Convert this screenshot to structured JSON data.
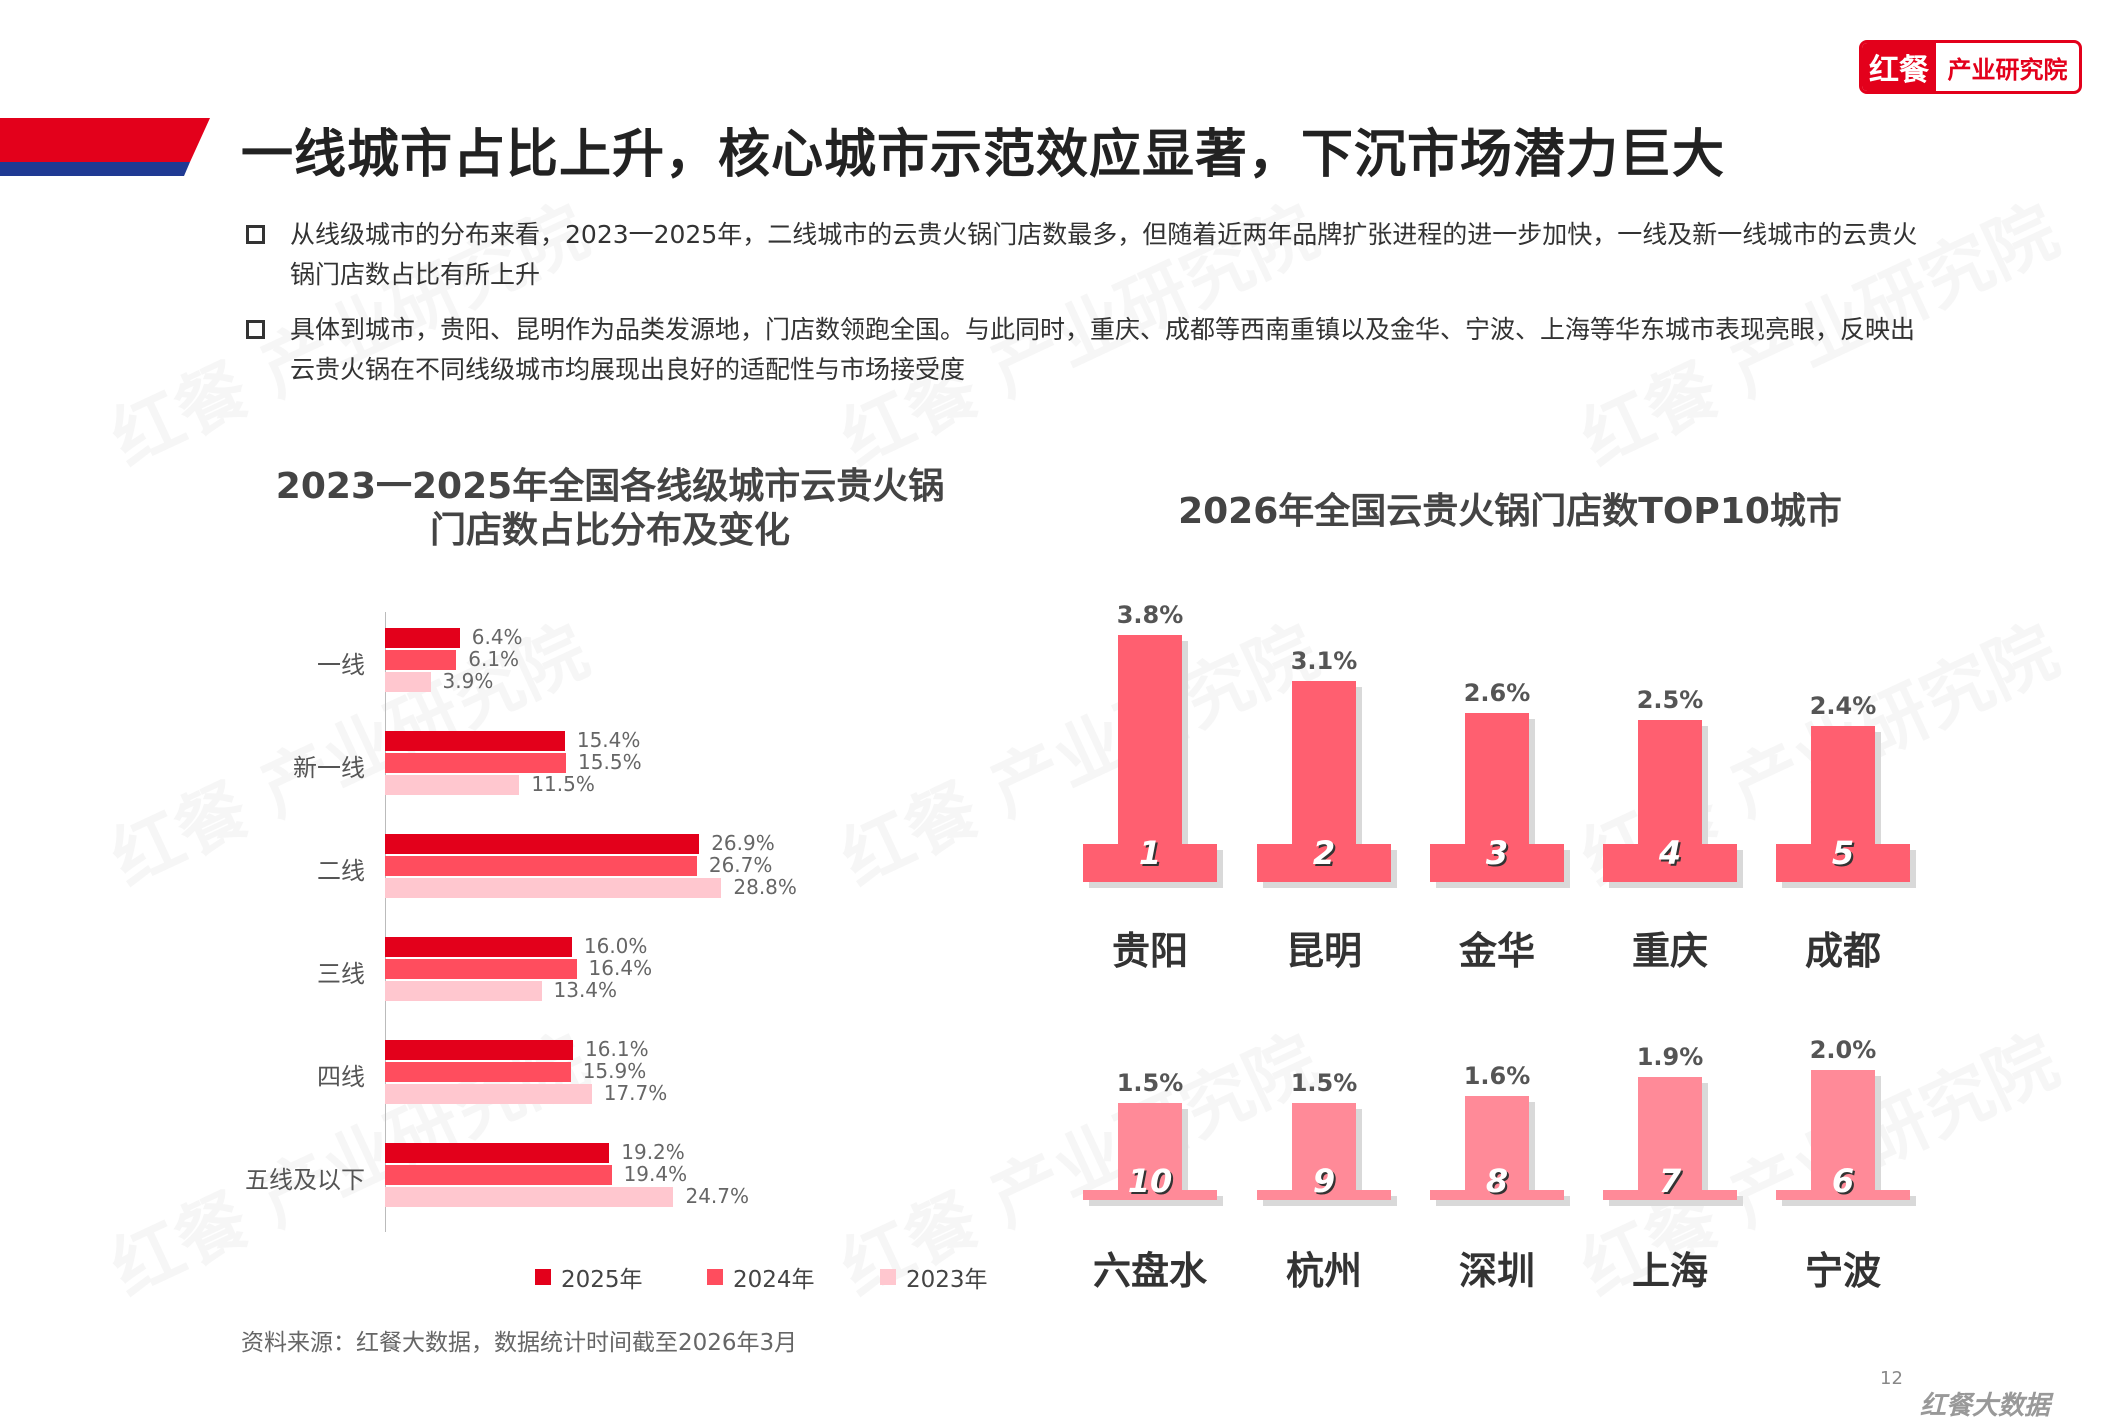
{
  "brand": {
    "logo_mark": "红餐",
    "logo_text": "产业研究院",
    "watermark": "红餐 产业研究院",
    "footer_brand": "红餐大数据"
  },
  "header": {
    "title": "一线城市占比上升，核心城市示范效应显著，下沉市场潜力巨大"
  },
  "bullets": [
    "从线级城市的分布来看，2023一2025年，二线城市的云贵火锅门店数最多，但随着近两年品牌扩张进程的进一步加快，一线及新一线城市的云贵火锅门店数占比有所上升",
    "具体到城市，贵阳、昆明作为品类发源地，门店数领跑全国。与此同时，重庆、成都等西南重镇以及金华、宁波、上海等华东城市表现亮眼，反映出云贵火锅在不同线级城市均展现出良好的适配性与市场接受度"
  ],
  "colors": {
    "red": "#e3001b",
    "mid": "#ff4d5e",
    "light": "#ffc7cf",
    "podium": "#ff5f70",
    "podium2": "#ff8a98"
  },
  "chart_data": [
    {
      "type": "bar",
      "orientation": "horizontal",
      "title": "2023一2025年全国各线级城市云贵火锅门店数占比分布及变化",
      "title_lines": [
        "2023一2025年全国各线级城市云贵火锅",
        "门店数占比分布及变化"
      ],
      "categories": [
        "一线",
        "新一线",
        "二线",
        "三线",
        "四线",
        "五线及以下"
      ],
      "series": [
        {
          "name": "2025年",
          "values": [
            6.4,
            15.4,
            26.9,
            16.0,
            16.1,
            19.2
          ],
          "labels": [
            "6.4%",
            "15.4%",
            "26.9%",
            "16.0%",
            "16.1%",
            "19.2%"
          ]
        },
        {
          "name": "2024年",
          "values": [
            6.1,
            15.5,
            26.7,
            16.4,
            15.9,
            19.4
          ],
          "labels": [
            "6.1%",
            "15.5%",
            "26.7%",
            "16.4%",
            "15.9%",
            "19.4%"
          ]
        },
        {
          "name": "2023年",
          "values": [
            3.9,
            11.5,
            28.8,
            13.4,
            17.7,
            24.7
          ],
          "labels": [
            "3.9%",
            "11.5%",
            "28.8%",
            "13.4%",
            "17.7%",
            "24.7%"
          ]
        }
      ],
      "xlim": [
        0,
        32
      ],
      "legend": "bottom"
    },
    {
      "type": "bar",
      "title": "2026年全国云贵火锅门店数TOP10城市",
      "ranks": [
        "1",
        "2",
        "3",
        "4",
        "5",
        "6",
        "7",
        "8",
        "9",
        "10"
      ],
      "categories": [
        "贵阳",
        "昆明",
        "金华",
        "重庆",
        "成都",
        "宁波",
        "上海",
        "深圳",
        "杭州",
        "六盘水"
      ],
      "values": [
        3.8,
        3.1,
        2.6,
        2.5,
        2.4,
        2.0,
        1.9,
        1.6,
        1.5,
        1.5
      ],
      "labels": [
        "3.8%",
        "3.1%",
        "2.6%",
        "2.5%",
        "2.4%",
        "2.0%",
        "1.9%",
        "1.6%",
        "1.5%",
        "1.5%"
      ]
    }
  ],
  "source": "资料来源：红餐大数据，数据统计时间截至2026年3月",
  "page_number": "12"
}
